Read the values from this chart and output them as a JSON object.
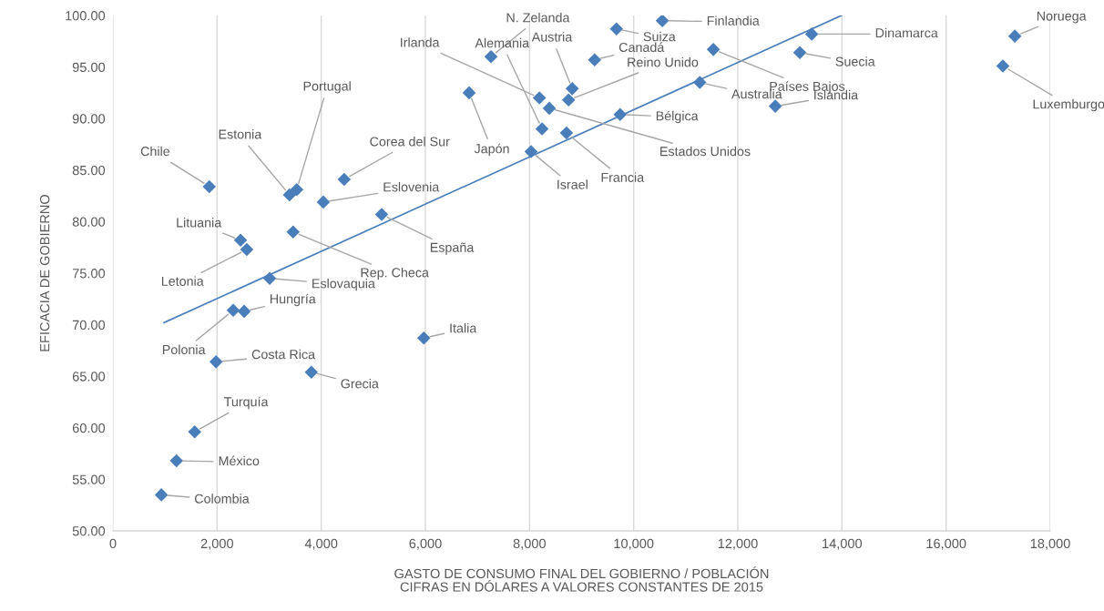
{
  "chart_data": {
    "type": "scatter",
    "xlabel": "GASTO DE CONSUMO FINAL DEL GOBIERNO / POBLACIÓN\nCIFRAS EN DÓLARES A VALORES CONSTANTES DE 2015",
    "ylabel": "EFICACIA DE GOBIERNO",
    "xlim": [
      0,
      18000
    ],
    "xticks": [
      {
        "value": 0,
        "label": "0"
      },
      {
        "value": 2000,
        "label": "2,000"
      },
      {
        "value": 4000,
        "label": "4,000"
      },
      {
        "value": 6000,
        "label": "6,000"
      },
      {
        "value": 8000,
        "label": "8,000"
      },
      {
        "value": 10000,
        "label": "10,000"
      },
      {
        "value": 12000,
        "label": "12,000"
      },
      {
        "value": 14000,
        "label": "14,000"
      },
      {
        "value": 16000,
        "label": "16,000"
      },
      {
        "value": 18000,
        "label": "18,000"
      }
    ],
    "ylim": [
      50,
      100
    ],
    "yticks": [
      {
        "value": 50,
        "label": "50.00"
      },
      {
        "value": 55,
        "label": "55.00"
      },
      {
        "value": 60,
        "label": "60.00"
      },
      {
        "value": 65,
        "label": "65.00"
      },
      {
        "value": 70,
        "label": "70.00"
      },
      {
        "value": 75,
        "label": "75.00"
      },
      {
        "value": 80,
        "label": "80.00"
      },
      {
        "value": 85,
        "label": "85.00"
      },
      {
        "value": 90,
        "label": "90.00"
      },
      {
        "value": 95,
        "label": "95.00"
      },
      {
        "value": 100,
        "label": "100.00"
      }
    ],
    "grid": "x",
    "marker": "diamond",
    "series": [
      {
        "color": "#4a7ebb",
        "x": [
          930,
          1220,
          1570,
          1980,
          2310,
          2520,
          2450,
          2570,
          1850,
          3010,
          3460,
          3390,
          3530,
          4440,
          4040,
          5160,
          3810,
          5970,
          6840,
          7260,
          8030,
          8190,
          8380,
          8240,
          8710,
          8750,
          8820,
          9250,
          9670,
          9740,
          10550,
          11530,
          11270,
          12720,
          13190,
          13420,
          17320,
          17090
        ],
        "values": [
          53.5,
          56.8,
          59.6,
          66.4,
          71.4,
          71.3,
          78.2,
          77.3,
          83.4,
          74.5,
          79.0,
          82.6,
          83.1,
          84.1,
          81.9,
          80.7,
          65.4,
          68.7,
          92.5,
          96.0,
          86.8,
          92.0,
          91.0,
          89.0,
          88.6,
          91.8,
          92.9,
          95.7,
          98.7,
          90.4,
          99.5,
          96.7,
          93.5,
          91.2,
          96.4,
          98.2,
          98.0,
          95.1
        ]
      },
      {
        "type": "line",
        "color": "#4a7ebb",
        "x": [
          980,
          13990
        ],
        "values": [
          70.2,
          100
        ],
        "marker": "none"
      }
    ],
    "annotations": [
      {
        "text": "Colombia",
        "x": 930,
        "y": 53.5
      },
      {
        "text": "México",
        "x": 1220,
        "y": 56.8
      },
      {
        "text": "Turquía",
        "x": 1570,
        "y": 59.6
      },
      {
        "text": "Costa Rica",
        "x": 1980,
        "y": 66.4
      },
      {
        "text": "Polonia",
        "x": 2310,
        "y": 71.4
      },
      {
        "text": "Hungría",
        "x": 2520,
        "y": 71.3
      },
      {
        "text": "Lituania",
        "x": 2450,
        "y": 78.2
      },
      {
        "text": "Letonia",
        "x": 2570,
        "y": 77.3
      },
      {
        "text": "Chile",
        "x": 1850,
        "y": 83.4
      },
      {
        "text": "Eslovaquia",
        "x": 3010,
        "y": 74.5
      },
      {
        "text": "Rep. Checa",
        "x": 3460,
        "y": 79.0
      },
      {
        "text": "Estonia",
        "x": 3390,
        "y": 82.6
      },
      {
        "text": "Portugal",
        "x": 3530,
        "y": 83.1
      },
      {
        "text": "Corea del Sur",
        "x": 4440,
        "y": 84.1
      },
      {
        "text": "Eslovenia",
        "x": 4040,
        "y": 81.9
      },
      {
        "text": "España",
        "x": 5160,
        "y": 80.7
      },
      {
        "text": "Grecia",
        "x": 3810,
        "y": 65.4
      },
      {
        "text": "Italia",
        "x": 5970,
        "y": 68.7
      },
      {
        "text": "Japón",
        "x": 6840,
        "y": 92.5
      },
      {
        "text": "N. Zelanda",
        "x": 7260,
        "y": 96.0
      },
      {
        "text": "Israel",
        "x": 8030,
        "y": 86.8
      },
      {
        "text": "Irlanda",
        "x": 8190,
        "y": 92.0
      },
      {
        "text": "Estados Unidos",
        "x": 8380,
        "y": 91.0
      },
      {
        "text": "Alemania",
        "x": 8240,
        "y": 89.0
      },
      {
        "text": "Francia",
        "x": 8710,
        "y": 88.6
      },
      {
        "text": "Reino Unido",
        "x": 8750,
        "y": 91.8
      },
      {
        "text": "Austria",
        "x": 8820,
        "y": 92.9
      },
      {
        "text": "Canadá",
        "x": 9250,
        "y": 95.7
      },
      {
        "text": "Suiza",
        "x": 9670,
        "y": 98.7
      },
      {
        "text": "Bélgica",
        "x": 9740,
        "y": 90.4
      },
      {
        "text": "Finlandia",
        "x": 10550,
        "y": 99.5
      },
      {
        "text": "Países Bajos",
        "x": 11530,
        "y": 96.7
      },
      {
        "text": "Australia",
        "x": 11270,
        "y": 93.5
      },
      {
        "text": "Islandia",
        "x": 12720,
        "y": 91.2
      },
      {
        "text": "Suecia",
        "x": 13190,
        "y": 96.4
      },
      {
        "text": "Dinamarca",
        "x": 13420,
        "y": 98.2
      },
      {
        "text": "Noruega",
        "x": 17320,
        "y": 98.0
      },
      {
        "text": "Luxemburgo",
        "x": 17090,
        "y": 95.1
      }
    ]
  }
}
